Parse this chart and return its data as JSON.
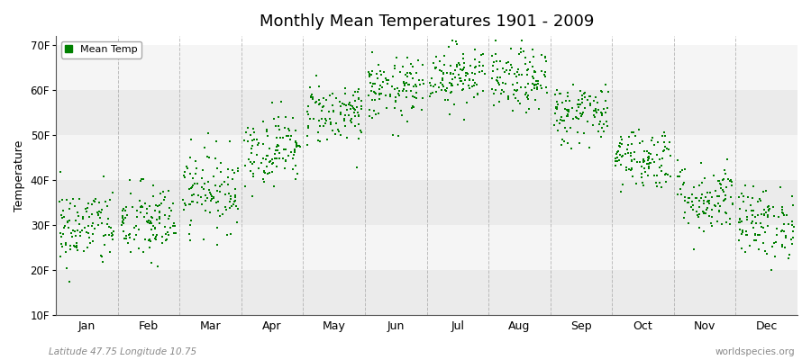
{
  "title": "Monthly Mean Temperatures 1901 – 2009",
  "ylabel": "Temperature",
  "xlabel_labels": [
    "Jan",
    "Feb",
    "Mar",
    "Apr",
    "May",
    "Jun",
    "Jul",
    "Aug",
    "Sep",
    "Oct",
    "Nov",
    "Dec"
  ],
  "ytick_labels": [
    "10F",
    "20F",
    "30F",
    "40F",
    "50F",
    "60F",
    "70F"
  ],
  "ytick_values": [
    10,
    20,
    30,
    40,
    50,
    60,
    70
  ],
  "ylim": [
    10,
    72
  ],
  "subtitle_left": "Latitude 47.75 Longitude 10.75",
  "subtitle_right": "worldspecies.org",
  "legend_label": "Mean Temp",
  "marker_color": "#008000",
  "marker_size": 3.5,
  "n_years": 109,
  "monthly_means_f": [
    29.5,
    30.5,
    38.0,
    47.0,
    55.0,
    60.0,
    63.5,
    62.0,
    55.0,
    45.0,
    36.0,
    30.5
  ],
  "monthly_stds_f": [
    4.5,
    4.5,
    4.5,
    4.0,
    3.5,
    3.5,
    3.5,
    3.5,
    3.5,
    3.5,
    4.0,
    4.0
  ],
  "bg_color": "#ffffff",
  "plot_bg_color": "#ffffff",
  "band_colors": [
    "#ebebeb",
    "#f5f5f5"
  ],
  "grid_color": "#999999",
  "axis_color": "#555555",
  "title_dash": "Monthly Mean Temperatures 1901 - 2009"
}
